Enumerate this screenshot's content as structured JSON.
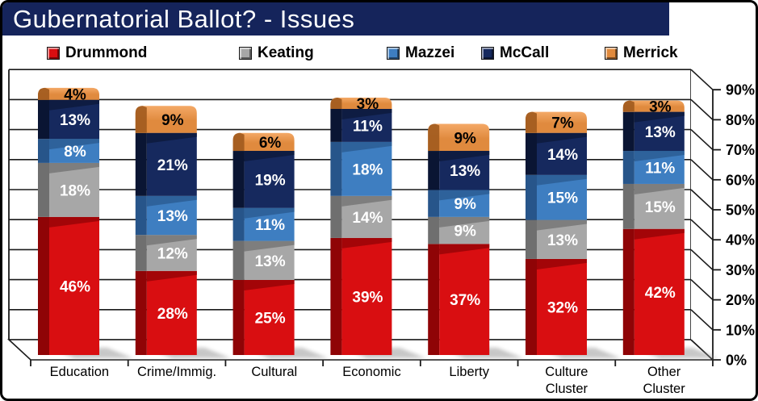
{
  "title": "Gubernatorial Ballot? - Issues",
  "legend": [
    {
      "label": "Drummond",
      "color": "#D90E11"
    },
    {
      "label": "Keating",
      "color": "#A7A7A7"
    },
    {
      "label": "Mazzei",
      "color": "#3E7EC1"
    },
    {
      "label": "McCall",
      "color": "#16295E"
    },
    {
      "label": "Merrick",
      "color": "#E08A3E"
    }
  ],
  "colors": {
    "title_bar": "#15245B",
    "background": "#FFFFFF",
    "axis": "#1A1A1A"
  },
  "chart_data": {
    "type": "bar",
    "stacked": true,
    "title": "Gubernatorial Ballot? - Issues",
    "categories": [
      "Education",
      "Crime/Immig.",
      "Cultural",
      "Economic",
      "Liberty",
      "Culture Cluster",
      "Other Cluster"
    ],
    "series": [
      {
        "name": "Drummond",
        "color": "#D90E11",
        "dark": "#8F0406",
        "shoulder": "#A30508",
        "label_color": "#FFFFFF",
        "values": [
          46,
          28,
          25,
          39,
          37,
          32,
          42
        ]
      },
      {
        "name": "Keating",
        "color": "#A7A7A7",
        "dark": "#6F6F6F",
        "shoulder": "#7E7E7E",
        "label_color": "#FFFFFF",
        "values": [
          18,
          12,
          13,
          14,
          9,
          13,
          15
        ]
      },
      {
        "name": "Mazzei",
        "color": "#3E7EC1",
        "dark": "#27558A",
        "shoulder": "#2E629B",
        "label_color": "#FFFFFF",
        "values": [
          8,
          13,
          11,
          18,
          9,
          15,
          11
        ]
      },
      {
        "name": "McCall",
        "color": "#16295E",
        "dark": "#0A1533",
        "shoulder": "#0E1C42",
        "label_color": "#FFFFFF",
        "values": [
          13,
          21,
          19,
          11,
          13,
          14,
          13
        ]
      },
      {
        "name": "Merrick",
        "color": "#E08A3E",
        "dark": "#A25B1E",
        "shoulder": "#B96A24",
        "highlight": "#F4A967",
        "label_color": "#000000",
        "values": [
          4,
          9,
          6,
          3,
          9,
          7,
          3
        ]
      }
    ],
    "value_suffix": "%",
    "ylabel": "",
    "xlabel": "",
    "ylim": [
      0,
      90
    ],
    "y_ticks": [
      "0%",
      "10%",
      "20%",
      "30%",
      "40%",
      "50%",
      "60%",
      "70%",
      "80%",
      "90%"
    ],
    "axis_side": "right",
    "grid": true,
    "legend_position": "top",
    "style": "3d-stacked-column"
  }
}
